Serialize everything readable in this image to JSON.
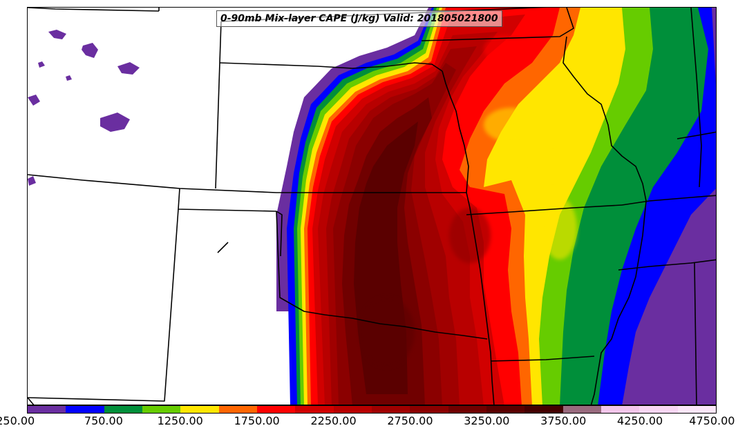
{
  "title": "0-90mb Mix-layer CAPE (J/kg) Valid: 201805021800",
  "colorbar": {
    "tick_labels": [
      "250.00",
      "750.00",
      "1250.00",
      "1750.00",
      "2250.00",
      "2750.00",
      "3250.00",
      "3750.00",
      "4250.00",
      "4750.00"
    ],
    "range": [
      250,
      4750
    ],
    "interval": 250,
    "colors": [
      "#6a2ea0",
      "#0000ff",
      "#008f3a",
      "#66cc00",
      "#ffe600",
      "#ff6600",
      "#ff0000",
      "#d10000",
      "#b80000",
      "#a00000",
      "#8b0000",
      "#700000",
      "#5a0000",
      "#440000",
      "#986a7e",
      "#f3c6ea",
      "#f8d6f3",
      "#fbe6f8"
    ]
  },
  "map": {
    "field": "0-90mb Mix-layer CAPE",
    "units": "J/kg",
    "valid": "201805021800",
    "background": "#ffffff",
    "border_color": "#000000"
  }
}
